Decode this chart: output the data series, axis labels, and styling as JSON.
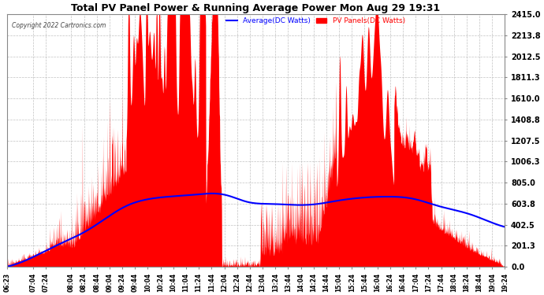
{
  "title": "Total PV Panel Power & Running Average Power Mon Aug 29 19:31",
  "copyright": "Copyright 2022 Cartronics.com",
  "legend_avg": "Average(DC Watts)",
  "legend_pv": "PV Panels(DC Watts)",
  "ymax": 2415.0,
  "ymin": 0.0,
  "yticks": [
    0.0,
    201.3,
    402.5,
    603.8,
    805.0,
    1006.3,
    1207.5,
    1408.8,
    1610.0,
    1811.3,
    2012.5,
    2213.8,
    2415.0
  ],
  "background_color": "#ffffff",
  "grid_color": "#bbbbbb",
  "fill_color": "#ff0000",
  "avg_line_color": "#0000ff",
  "title_color": "#000000",
  "xtick_labels": [
    "06:23",
    "07:04",
    "07:24",
    "08:04",
    "08:24",
    "08:44",
    "09:04",
    "09:24",
    "09:44",
    "10:04",
    "10:24",
    "10:44",
    "11:04",
    "11:24",
    "11:44",
    "12:04",
    "12:24",
    "12:44",
    "13:04",
    "13:24",
    "13:44",
    "14:04",
    "14:24",
    "14:44",
    "15:04",
    "15:24",
    "15:44",
    "16:04",
    "16:24",
    "16:44",
    "17:04",
    "17:24",
    "17:44",
    "18:04",
    "18:24",
    "18:44",
    "19:04",
    "19:24"
  ]
}
